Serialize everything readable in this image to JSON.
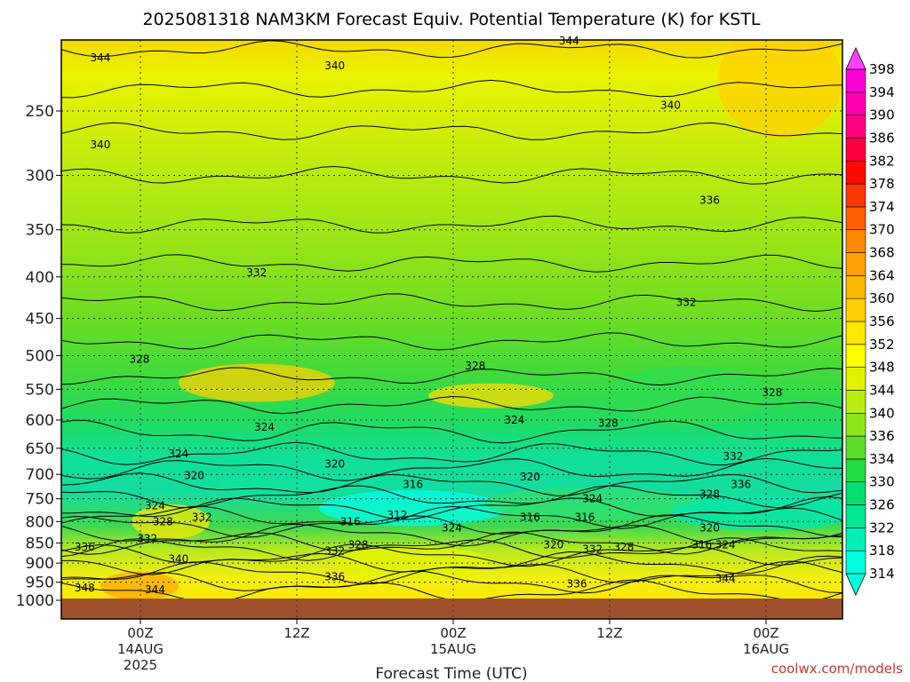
{
  "chart_data": {
    "type": "heatmap",
    "title": "2025081318 NAM3KM Forecast Equiv. Potential Temperature (K) for KSTL",
    "xlabel": "Forecast Time (UTC)",
    "ylabel": "",
    "y_scale": "log",
    "y_ticks": [
      250,
      300,
      350,
      400,
      450,
      500,
      550,
      600,
      650,
      700,
      750,
      800,
      850,
      900,
      950,
      1000
    ],
    "ylim": [
      1000,
      200
    ],
    "x_ticks": [
      {
        "label": "00Z",
        "date": "14AUG",
        "year": "2025"
      },
      {
        "label": "12Z",
        "date": "",
        "year": ""
      },
      {
        "label": "00Z",
        "date": "15AUG",
        "year": ""
      },
      {
        "label": "12Z",
        "date": "",
        "year": ""
      },
      {
        "label": "00Z",
        "date": "16AUG",
        "year": ""
      }
    ],
    "colorbar": {
      "levels": [
        314,
        318,
        322,
        326,
        330,
        334,
        336,
        340,
        344,
        348,
        352,
        356,
        360,
        364,
        368,
        370,
        374,
        378,
        382,
        386,
        390,
        394,
        398
      ],
      "colors": [
        "#00ffe0",
        "#00f0b8",
        "#00e890",
        "#00e070",
        "#22dd44",
        "#5cdf2a",
        "#8ee61a",
        "#b8ef10",
        "#e0f400",
        "#ffff00",
        "#ffe800",
        "#ffd000",
        "#ffb800",
        "#ffa000",
        "#ff8800",
        "#ff6000",
        "#ff3800",
        "#ff0a00",
        "#ff0040",
        "#ff0080",
        "#ff00b0",
        "#ff00d8",
        "#ff40ff"
      ]
    },
    "contour_labels": [
      {
        "text": "344",
        "x": 0.05,
        "p": 215
      },
      {
        "text": "340",
        "x": 0.05,
        "p": 275
      },
      {
        "text": "340",
        "x": 0.35,
        "p": 220
      },
      {
        "text": "344",
        "x": 0.65,
        "p": 205
      },
      {
        "text": "340",
        "x": 0.78,
        "p": 246
      },
      {
        "text": "336",
        "x": 0.83,
        "p": 322
      },
      {
        "text": "332",
        "x": 0.25,
        "p": 395
      },
      {
        "text": "332",
        "x": 0.8,
        "p": 430
      },
      {
        "text": "328",
        "x": 0.1,
        "p": 505
      },
      {
        "text": "328",
        "x": 0.53,
        "p": 515
      },
      {
        "text": "328",
        "x": 0.91,
        "p": 555
      },
      {
        "text": "328",
        "x": 0.7,
        "p": 605
      },
      {
        "text": "324",
        "x": 0.26,
        "p": 612
      },
      {
        "text": "324",
        "x": 0.58,
        "p": 600
      },
      {
        "text": "324",
        "x": 0.15,
        "p": 660
      },
      {
        "text": "320",
        "x": 0.35,
        "p": 680
      },
      {
        "text": "320",
        "x": 0.6,
        "p": 705
      },
      {
        "text": "320",
        "x": 0.17,
        "p": 702
      },
      {
        "text": "316",
        "x": 0.45,
        "p": 720
      },
      {
        "text": "332",
        "x": 0.86,
        "p": 665
      },
      {
        "text": "336",
        "x": 0.87,
        "p": 720
      },
      {
        "text": "328",
        "x": 0.83,
        "p": 740
      },
      {
        "text": "324",
        "x": 0.68,
        "p": 750
      },
      {
        "text": "324",
        "x": 0.12,
        "p": 765
      },
      {
        "text": "312",
        "x": 0.43,
        "p": 785
      },
      {
        "text": "316",
        "x": 0.37,
        "p": 800
      },
      {
        "text": "316",
        "x": 0.6,
        "p": 790
      },
      {
        "text": "316",
        "x": 0.67,
        "p": 790
      },
      {
        "text": "328",
        "x": 0.13,
        "p": 800
      },
      {
        "text": "332",
        "x": 0.18,
        "p": 790
      },
      {
        "text": "324",
        "x": 0.5,
        "p": 815
      },
      {
        "text": "320",
        "x": 0.83,
        "p": 815
      },
      {
        "text": "332",
        "x": 0.11,
        "p": 840
      },
      {
        "text": "336",
        "x": 0.03,
        "p": 860
      },
      {
        "text": "328",
        "x": 0.38,
        "p": 855
      },
      {
        "text": "332",
        "x": 0.35,
        "p": 870
      },
      {
        "text": "320",
        "x": 0.63,
        "p": 855
      },
      {
        "text": "332",
        "x": 0.68,
        "p": 865
      },
      {
        "text": "328",
        "x": 0.72,
        "p": 860
      },
      {
        "text": "316",
        "x": 0.82,
        "p": 855
      },
      {
        "text": "324",
        "x": 0.85,
        "p": 855
      },
      {
        "text": "340",
        "x": 0.15,
        "p": 890
      },
      {
        "text": "336",
        "x": 0.35,
        "p": 935
      },
      {
        "text": "336",
        "x": 0.66,
        "p": 955
      },
      {
        "text": "344",
        "x": 0.85,
        "p": 940
      },
      {
        "text": "348",
        "x": 0.03,
        "p": 965
      },
      {
        "text": "344",
        "x": 0.12,
        "p": 970
      }
    ]
  },
  "credit": "coolwx.com/models"
}
